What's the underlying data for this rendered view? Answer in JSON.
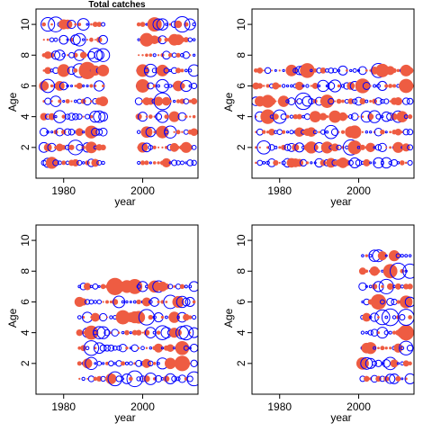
{
  "colors": {
    "positive_fill": "#ee5c42",
    "negative_stroke": "#0000ff",
    "axis": "#000000",
    "background": "#ffffff"
  },
  "chart_data": [
    {
      "type": "scatter",
      "subtype": "bubble-residuals",
      "title": "Total catches",
      "xlabel": "year",
      "ylabel": "Age",
      "xticks": [
        1980,
        2000
      ],
      "yticks": [
        2,
        4,
        6,
        8,
        10
      ],
      "xlim": [
        1973,
        2014
      ],
      "ylim": [
        0,
        11
      ],
      "years_present": [
        1975,
        2013
      ],
      "years_gap": [
        1991,
        1998
      ],
      "ages": [
        1,
        2,
        3,
        4,
        5,
        6,
        7,
        8,
        9,
        10
      ]
    },
    {
      "type": "scatter",
      "subtype": "bubble-residuals",
      "title": "",
      "xlabel": "year",
      "ylabel": "Age",
      "xticks": [
        1980,
        2000
      ],
      "yticks": [
        2,
        4,
        6,
        8,
        10
      ],
      "xlim": [
        1973,
        2014
      ],
      "ylim": [
        0,
        11
      ],
      "years_present": [
        1974,
        2013
      ],
      "years_gap": [],
      "ages": [
        1,
        2,
        3,
        4,
        5,
        6,
        7
      ]
    },
    {
      "type": "scatter",
      "subtype": "bubble-residuals",
      "title": "",
      "xlabel": "year",
      "ylabel": "Age",
      "xticks": [
        1980,
        2000
      ],
      "yticks": [
        2,
        4,
        6,
        8,
        10
      ],
      "xlim": [
        1973,
        2014
      ],
      "ylim": [
        0,
        11
      ],
      "years_present": [
        1984,
        2013
      ],
      "years_gap": [],
      "ages": [
        1,
        2,
        3,
        4,
        5,
        6,
        7
      ]
    },
    {
      "type": "scatter",
      "subtype": "bubble-residuals",
      "title": "",
      "xlabel": "year",
      "ylabel": "Age",
      "xticks": [
        1980,
        2000
      ],
      "yticks": [
        2,
        4,
        6,
        8,
        10
      ],
      "xlim": [
        1973,
        2014
      ],
      "ylim": [
        0,
        11
      ],
      "years_present": [
        2001,
        2013
      ],
      "years_gap": [],
      "ages": [
        1,
        2,
        3,
        4,
        5,
        6,
        7,
        8,
        9
      ]
    }
  ]
}
